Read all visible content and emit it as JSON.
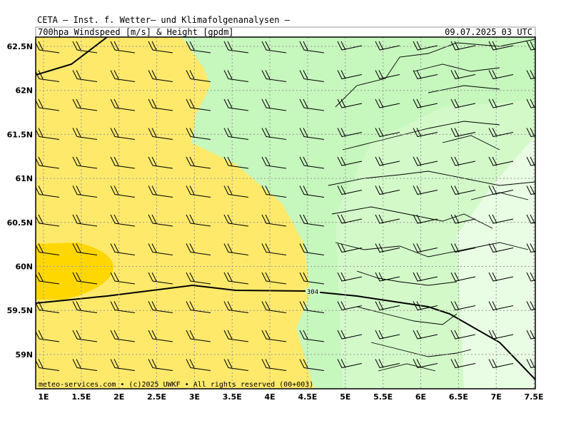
{
  "header": {
    "title": "CETA – Inst. f. Wetter– und Klimafolgenanalysen –",
    "product": "700hpa_Windspeed_[m/s]_&_Height_[gpdm]",
    "valid_time": "09.07.2025 03 UTC"
  },
  "map": {
    "lat_labels": [
      "62.5N",
      "62N",
      "61.5N",
      "61N",
      "60.5N",
      "60N",
      "59.5N",
      "59N"
    ],
    "lon_labels": [
      "1E",
      "1.5E",
      "2E",
      "2.5E",
      "3E",
      "3.5E",
      "4E",
      "4.5E",
      "5E",
      "5.5E",
      "6E",
      "6.5E",
      "7E",
      "7.5E"
    ],
    "contour_label": "304",
    "footer": "meteo-services.com • (c)2025 UWKF • All rights reserved (00+003)"
  }
}
